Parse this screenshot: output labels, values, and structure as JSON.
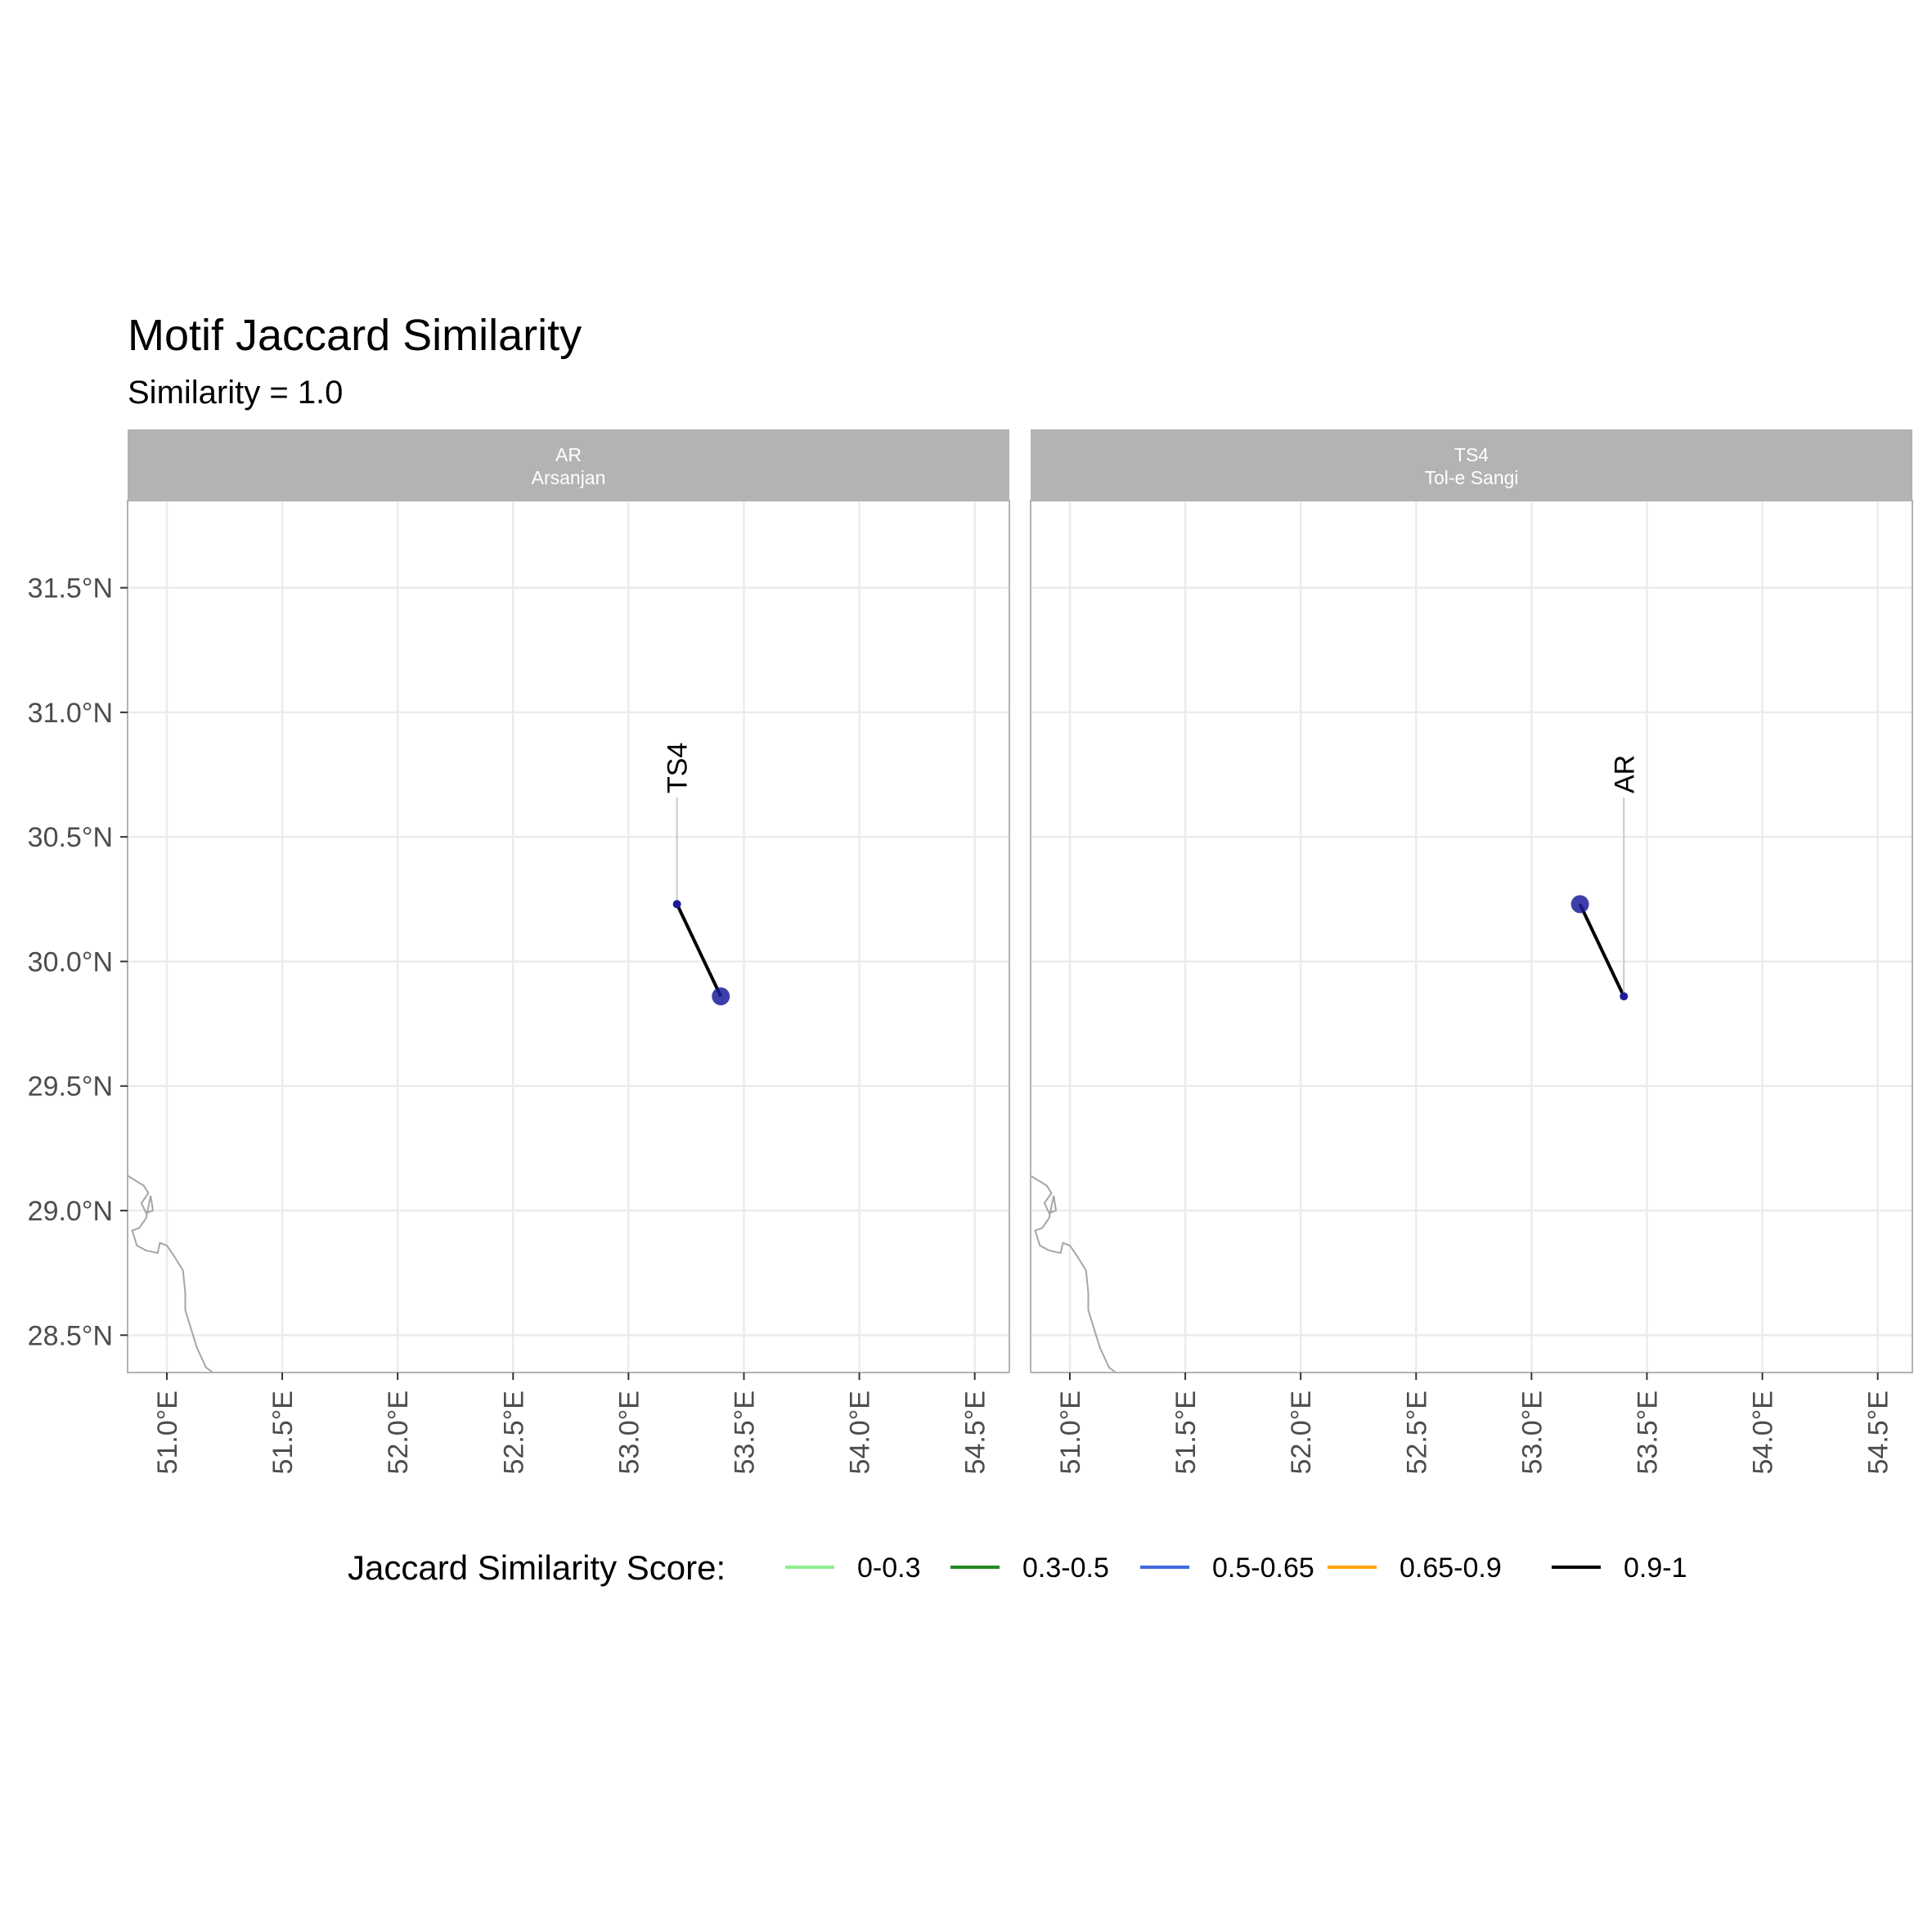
{
  "chart_data": {
    "type": "map",
    "title": "Motif Jaccard Similarity",
    "subtitle": "Similarity = 1.0",
    "xlim": [
      50.83,
      54.65
    ],
    "ylim": [
      28.35,
      31.85
    ],
    "x_ticks": [
      51.0,
      51.5,
      52.0,
      52.5,
      53.0,
      53.5,
      54.0,
      54.5
    ],
    "x_tick_labels": [
      "51.0°E",
      "51.5°E",
      "52.0°E",
      "52.5°E",
      "53.0°E",
      "53.5°E",
      "54.0°E",
      "54.5°E"
    ],
    "y_ticks": [
      28.5,
      29.0,
      29.5,
      30.0,
      30.5,
      31.0,
      31.5
    ],
    "y_tick_labels": [
      "28.5°N",
      "29.0°N",
      "29.5°N",
      "30.0°N",
      "30.5°N",
      "31.0°N",
      "31.5°N"
    ],
    "grid": true,
    "sites": {
      "AR": {
        "lon": 53.4,
        "lat": 29.86
      },
      "TS4": {
        "lon": 53.21,
        "lat": 30.23
      }
    },
    "panels": [
      {
        "strip_line1": "AR",
        "strip_line2": "Arsanjan",
        "focus": "AR",
        "links": [
          {
            "to": "TS4",
            "score": 1.0,
            "category": "0.9-1",
            "label": "TS4"
          }
        ]
      },
      {
        "strip_line1": "TS4",
        "strip_line2": "Tol-e Sangi",
        "focus": "TS4",
        "links": [
          {
            "to": "AR",
            "score": 1.0,
            "category": "0.9-1",
            "label": "AR"
          }
        ]
      }
    ],
    "coastline": [
      [
        50.83,
        29.14
      ],
      [
        50.9,
        29.1
      ],
      [
        50.92,
        29.07
      ],
      [
        50.89,
        29.03
      ],
      [
        50.91,
        28.99
      ],
      [
        50.94,
        29.0
      ],
      [
        50.93,
        29.06
      ],
      [
        50.91,
        28.97
      ],
      [
        50.88,
        28.93
      ],
      [
        50.85,
        28.92
      ],
      [
        50.87,
        28.86
      ],
      [
        50.91,
        28.84
      ],
      [
        50.96,
        28.83
      ],
      [
        50.97,
        28.87
      ],
      [
        51.0,
        28.86
      ],
      [
        51.03,
        28.82
      ],
      [
        51.07,
        28.76
      ],
      [
        51.08,
        28.67
      ],
      [
        51.08,
        28.6
      ],
      [
        51.1,
        28.54
      ],
      [
        51.13,
        28.45
      ],
      [
        51.17,
        28.37
      ],
      [
        51.2,
        28.35
      ]
    ],
    "legend": {
      "title": "Jaccard Similarity Score:",
      "position": "bottom",
      "items": [
        {
          "label": "0-0.3",
          "color": "#90ee90"
        },
        {
          "label": "0.3-0.5",
          "color": "#228b22"
        },
        {
          "label": "0.5-0.65",
          "color": "#4169e1"
        },
        {
          "label": "0.65-0.9",
          "color": "#ffa500"
        },
        {
          "label": "0.9-1",
          "color": "#000000"
        }
      ]
    },
    "colors": {
      "point_fill": "#1c1c9a",
      "strip_fill": "#b3b3b3",
      "grid": "#ebebeb",
      "coastline": "#a6a6a6",
      "panel_border": "#b3b3b3"
    }
  }
}
